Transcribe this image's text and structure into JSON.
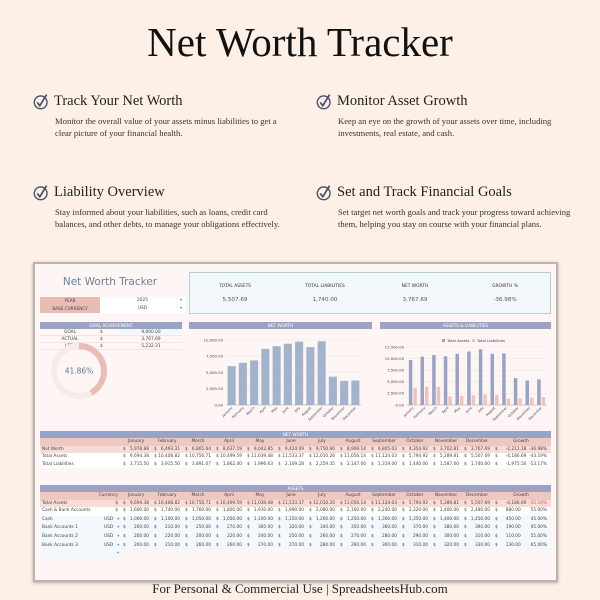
{
  "title": "Net Worth Tracker",
  "features": [
    {
      "heading": "Track Your Net Worth",
      "text": "Monitor the overall value of your assets minus liabilities to get a clear picture of your financial health.",
      "icon": "check-circle-icon"
    },
    {
      "heading": "Monitor Asset Growth",
      "text": "Keep an eye on the growth of your assets over time, including investments, real estate, and cash.",
      "icon": "check-circle-icon"
    },
    {
      "heading": "Liability Overview",
      "text": "Stay informed about your liabilities, such as loans, credit card balances, and other debts, to manage your obligations effectively.",
      "icon": "check-circle-icon"
    },
    {
      "heading": "Set and Track Financial Goals",
      "text": "Set target net worth goals and track your progress toward achieving them, helping you stay on course with your financial plans.",
      "icon": "check-circle-icon"
    }
  ],
  "sheet": {
    "title": "Net Worth Tracker",
    "params": [
      {
        "label": "YEAR",
        "value": "2025"
      },
      {
        "label": "BASE  CURRENCY",
        "value": "USD"
      }
    ],
    "dropdown_glyph": "▾",
    "summary": [
      {
        "label": "TOTAL ASSETS",
        "value": "5,507.69"
      },
      {
        "label": "TOTAL LIABILITIES",
        "value": "1,740.00"
      },
      {
        "label": "NET WORTH",
        "value": "3,767.69"
      },
      {
        "label": "GROWTH %",
        "value": "-36.98%"
      }
    ],
    "goal": {
      "header": "GOAL ACHIEVEMENT",
      "rows": [
        {
          "label": "GOAL",
          "cur": "$",
          "value": "9,000.00"
        },
        {
          "label": "ACTUAL",
          "cur": "$",
          "value": "3,767.69"
        },
        {
          "label": "LEFT",
          "cur": "$",
          "value": "5,232.31"
        }
      ],
      "percent_label": "41.86%",
      "percent": 41.86
    },
    "colors": {
      "header_bar": "#9ba3c5",
      "assets": "#9ba3c5",
      "liabilities": "#efc3b9",
      "net_worth_bar": "#a3b3cc",
      "donut": "#e9bdb5"
    },
    "months": [
      "January",
      "February",
      "March",
      "April",
      "May",
      "June",
      "July",
      "August",
      "September",
      "October",
      "November",
      "December"
    ],
    "growth_label": "Growth",
    "currency_label": "Currency",
    "net_worth_table": {
      "header": "NET WORTH",
      "rows": [
        {
          "label": "Net Worth",
          "cur": "$",
          "values": [
            "5,978.88",
            "6,493.31",
            "6,865.64",
            "8,637.19",
            "9,042.85",
            "9,424.09",
            "9,750.90",
            "8,909.14",
            "9,805.03",
            "4,354.92",
            "3,702.81",
            "3,767.69"
          ],
          "growth": "-2,211.18",
          "growth_pct": "-36.98%"
        },
        {
          "label": "Total Assets",
          "cur": "$",
          "values": [
            "9,694.38",
            "10,408.82",
            "10,756.71",
            "10,499.59",
            "11,039.48",
            "11,533.37",
            "12,010.26",
            "11,056.14",
            "11,124.03",
            "5,794.92",
            "5,289.81",
            "5,507.69"
          ],
          "growth": "-4,186.69",
          "growth_pct": "-43.19%"
        },
        {
          "label": "Total Liabilities",
          "cur": "$",
          "values": [
            "3,715.50",
            "3,915.50",
            "3,891.07",
            "1,862.40",
            "1,996.63",
            "2,109.28",
            "2,259.35",
            "2,147.00",
            "1,319.00",
            "1,440.00",
            "1,587.00",
            "1,740.00"
          ],
          "growth": "-1,975.50",
          "growth_pct": "-53.17%"
        }
      ]
    },
    "assets_table": {
      "header": "ASSETS",
      "rows": [
        {
          "label": "Total Assets",
          "cur": "$",
          "values": [
            "9,694.38",
            "10,408.82",
            "10,756.71",
            "10,499.59",
            "11,039.48",
            "11,533.37",
            "12,010.26",
            "11,056.14",
            "11,124.03",
            "5,794.92",
            "5,289.81",
            "5,507.69"
          ],
          "growth": "-4,186.69",
          "growth_pct": "-43.19%",
          "neg": true
        },
        {
          "label": "Cash & Bank Accounts",
          "cur": "$",
          "values": [
            "1,600.00",
            "1,740.00",
            "1,760.00",
            "1,800.00",
            "1,910.00",
            "1,990.00",
            "2,080.00",
            "2,160.00",
            "2,240.00",
            "2,320.00",
            "2,400.00",
            "2,480.00"
          ],
          "growth": "880.00",
          "growth_pct": "55.00%"
        },
        {
          "label": "Cash",
          "cur": "USD",
          "values": [
            "1,000.00",
            "1,100.00",
            "1,050.00",
            "1,050.00",
            "1,100.00",
            "1,150.00",
            "1,200.00",
            "1,250.00",
            "1,300.00",
            "1,350.00",
            "1,400.00",
            "1,450.00"
          ],
          "growth": "450.00",
          "growth_pct": "45.00%"
        },
        {
          "label": "Bank Accounts 1",
          "cur": "USD",
          "values": [
            "200.00",
            "210.00",
            "250.00",
            "270.00",
            "300.00",
            "320.00",
            "340.00",
            "350.00",
            "360.00",
            "370.00",
            "380.00",
            "390.00"
          ],
          "growth": "190.00",
          "growth_pct": "95.00%"
        },
        {
          "label": "Bank Accounts 2",
          "cur": "USD",
          "values": [
            "200.00",
            "220.00",
            "200.00",
            "220.00",
            "240.00",
            "250.00",
            "260.00",
            "270.00",
            "280.00",
            "290.00",
            "300.00",
            "310.00"
          ],
          "growth": "110.00",
          "growth_pct": "55.00%"
        },
        {
          "label": "Bank Accounts 3",
          "cur": "USD",
          "values": [
            "200.00",
            "210.00",
            "260.00",
            "260.00",
            "270.00",
            "270.00",
            "280.00",
            "290.00",
            "300.00",
            "310.00",
            "320.00",
            "330.00"
          ],
          "growth": "130.00",
          "growth_pct": "65.00%"
        }
      ]
    }
  },
  "chart_data": [
    {
      "type": "bar",
      "title": "NET WORTH",
      "categories": [
        "January",
        "February",
        "March",
        "April",
        "May",
        "June",
        "July",
        "August",
        "September",
        "October",
        "November",
        "December"
      ],
      "values": [
        5978.88,
        6493.31,
        6865.64,
        8637.19,
        9042.85,
        9424.09,
        9750.9,
        8909.14,
        9805.03,
        4354.92,
        3702.81,
        3767.69
      ],
      "yticks": [
        "0.00",
        "2,500.00",
        "5,000.00",
        "7,500.00",
        "10,000.00"
      ],
      "ylim": [
        0,
        10000
      ],
      "grid": true
    },
    {
      "type": "bar",
      "title": "ASSETS & LIABILITIES",
      "categories": [
        "January",
        "February",
        "March",
        "April",
        "May",
        "June",
        "July",
        "August",
        "September",
        "October",
        "November",
        "December"
      ],
      "series": [
        {
          "name": "Total Assets",
          "values": [
            9694.38,
            10408.82,
            10756.71,
            10499.59,
            11039.48,
            11533.37,
            12010.26,
            11056.14,
            11124.03,
            5794.92,
            5289.81,
            5507.69
          ]
        },
        {
          "name": "Total Liabilities",
          "values": [
            3715.5,
            3915.5,
            3891.07,
            1862.4,
            1996.63,
            2109.28,
            2259.35,
            2147.0,
            1319.0,
            1440.0,
            1587.0,
            1740.0
          ]
        }
      ],
      "yticks": [
        "0.00",
        "2,500.00",
        "5,000.00",
        "7,500.00",
        "10,000.00",
        "12,500.00"
      ],
      "ylim": [
        0,
        12500
      ],
      "legend": "top",
      "grid": true
    }
  ],
  "footer": "For Personal & Commercial Use  |  SpreadsheetsHub.com"
}
